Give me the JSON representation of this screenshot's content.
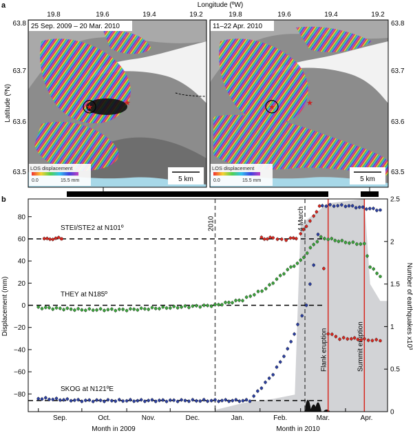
{
  "panel_a": {
    "letter": "a",
    "top_axis_label": "Longitude (ºW)",
    "left_axis_label": "Latitude (ºN)",
    "lon_ticks": [
      "19.8",
      "19.6",
      "19.4",
      "19.2"
    ],
    "lat_ticks": [
      "63.8",
      "63.7",
      "63.6",
      "63.5"
    ],
    "map_left_title": "25 Sep. 2009 – 20 Mar. 2010",
    "map_right_title": "11–22 Apr. 2010",
    "colorbar_title": "LOS displacement",
    "colorbar_min": "0.0",
    "colorbar_max": "15.5 mm",
    "scale_label": "5 km",
    "colors": {
      "sea": "#a7d8e8",
      "terrain": "#8c8c8c",
      "ice": "#f4f4f4"
    }
  },
  "panel_b": {
    "letter": "b",
    "ylabel_left": "Displacement (mm)",
    "ylabel_right": "Number of earthquakes x10³",
    "xlabel_2009": "Month in 2009",
    "xlabel_2010": "Month in 2010",
    "month_labels": [
      "Sep.",
      "Oct.",
      "Nov.",
      "Dec.",
      "Jan.",
      "Feb.",
      "Mar.",
      "Apr."
    ],
    "left_ticks": [
      "80",
      "60",
      "40",
      "20",
      "0",
      "−20",
      "−40",
      "−60",
      "−80"
    ],
    "right_ticks": [
      "2.5",
      "2",
      "1.5",
      "1",
      "0.5",
      "0"
    ],
    "station_labels": [
      "STEI/STE2 at N101º",
      "THEY at N185º",
      "SKOG at N121ºE"
    ],
    "vline_labels": [
      "2010",
      "4 March",
      "Flank eruption",
      "Summit eruption"
    ],
    "colors": {
      "red": "#d7261e",
      "green": "#3aa23a",
      "blue": "#2b3fa0",
      "earthquake_area": "#d2d3d6",
      "eruption_line": "#d7261e"
    }
  },
  "chart_data": {
    "type": "scatter",
    "xlabel": "Month in 2009 / Month in 2010",
    "ylabel": "Displacement (mm)",
    "ylim": [
      -96,
      96
    ],
    "y2label": "Number of earthquakes x10³",
    "y2lim": [
      0,
      2.5
    ],
    "categories": [
      "Sep.",
      "Oct.",
      "Nov.",
      "Dec.",
      "Jan.",
      "Feb.",
      "Mar.",
      "Apr."
    ],
    "series": [
      {
        "name": "STEI/STE2 at N101º",
        "color": "#d7261e",
        "points": [
          [
            "2009-09-05",
            61
          ],
          [
            "2009-09-09",
            59
          ],
          [
            "2009-09-13",
            61
          ],
          [
            "2009-09-17",
            60
          ],
          [
            "2010-02-02",
            61
          ],
          [
            "2010-02-06",
            60
          ],
          [
            "2010-02-10",
            61
          ],
          [
            "2010-02-16",
            59
          ],
          [
            "2010-02-22",
            60
          ],
          [
            "2010-02-26",
            61
          ],
          [
            "2010-03-01",
            64
          ],
          [
            "2010-03-05",
            72
          ],
          [
            "2010-03-10",
            80
          ],
          [
            "2010-03-14",
            90
          ],
          [
            "2010-03-20",
            -25
          ],
          [
            "2010-03-28",
            -30
          ],
          [
            "2010-04-05",
            -30
          ],
          [
            "2010-04-14",
            -31
          ],
          [
            "2010-04-25",
            -32
          ]
        ]
      },
      {
        "name": "THEY at N185º",
        "color": "#3aa23a",
        "points": [
          [
            "2009-09-01",
            -2
          ],
          [
            "2009-10-01",
            -4
          ],
          [
            "2009-11-01",
            -4
          ],
          [
            "2009-12-01",
            -2
          ],
          [
            "2010-01-01",
            0
          ],
          [
            "2010-01-20",
            5
          ],
          [
            "2010-02-05",
            15
          ],
          [
            "2010-02-20",
            32
          ],
          [
            "2010-03-01",
            40
          ],
          [
            "2010-03-10",
            55
          ],
          [
            "2010-03-15",
            61
          ],
          [
            "2010-03-20",
            60
          ],
          [
            "2010-04-01",
            57
          ],
          [
            "2010-04-14",
            55
          ],
          [
            "2010-04-18",
            35
          ],
          [
            "2010-04-25",
            26
          ]
        ]
      },
      {
        "name": "SKOG at N121ºE",
        "color": "#2b3fa0",
        "points": [
          [
            "2009-09-01",
            -84
          ],
          [
            "2009-10-01",
            -86
          ],
          [
            "2009-11-01",
            -86
          ],
          [
            "2009-12-01",
            -86
          ],
          [
            "2010-01-01",
            -86
          ],
          [
            "2010-01-25",
            -86
          ],
          [
            "2010-02-10",
            -62
          ],
          [
            "2010-02-20",
            -40
          ],
          [
            "2010-02-27",
            -18
          ],
          [
            "2010-03-05",
            0
          ],
          [
            "2010-03-10",
            37
          ],
          [
            "2010-03-16",
            90
          ],
          [
            "2010-04-01",
            90
          ],
          [
            "2010-04-25",
            86
          ]
        ]
      },
      {
        "name": "earthquakes",
        "color": "#d2d3d6",
        "axis": "right",
        "points": [
          [
            "2010-01-01",
            0.02
          ],
          [
            "2010-01-20",
            0.1
          ],
          [
            "2010-02-10",
            0.15
          ],
          [
            "2010-02-25",
            0.2
          ],
          [
            "2010-03-01",
            2.2
          ],
          [
            "2010-03-20",
            2.45
          ],
          [
            "2010-04-14",
            2.5
          ],
          [
            "2010-04-18",
            1.5
          ],
          [
            "2010-04-25",
            1.3
          ]
        ]
      }
    ]
  }
}
